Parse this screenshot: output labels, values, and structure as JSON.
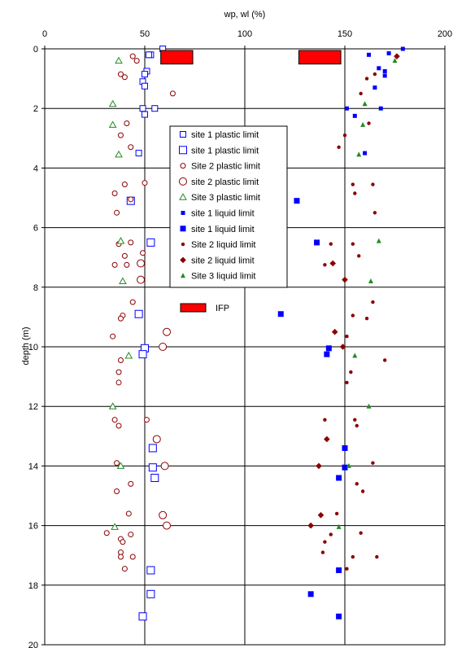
{
  "chart_data": {
    "type": "scatter",
    "title": "",
    "xlabel": "wp, wl (%)",
    "ylabel": "depth (m)",
    "xlim": [
      0,
      200
    ],
    "ylim": [
      0,
      20
    ],
    "y_inverted": true,
    "x_axis_position": "top",
    "x_ticks": [
      "0",
      "50",
      "100",
      "150",
      "200"
    ],
    "y_ticks": [
      "0",
      "2",
      "4",
      "6",
      "8",
      "10",
      "12",
      "14",
      "16",
      "18",
      "20"
    ],
    "grid": "vertical lines at 50, 100, 150; horizontal lines at every 2 m",
    "legend_position": "center",
    "legend": [
      "site 1 plastic limit",
      "site 1 plastic limit",
      "Site 2 plastic limit",
      "site 2 plastic limit",
      "Site 3 plastic limit",
      "site 1 liquid limit",
      "site 1 liquid limit",
      "Site 2 liquid limit",
      "site 2 liquid limit",
      "Site 3 liquid limit",
      "IFP"
    ],
    "colors": {
      "blue": "#0000ff",
      "darkred": "#8b0000",
      "green": "#228b22",
      "red": "#ff0000"
    },
    "series": [
      {
        "name": "site 1 plastic limit",
        "marker": "open-square-small",
        "color": "#0000ff",
        "points": [
          [
            59,
            0
          ],
          [
            53,
            0.2
          ],
          [
            52,
            0.2
          ],
          [
            51,
            0.75
          ],
          [
            50,
            0.85
          ],
          [
            49,
            1.1
          ],
          [
            50,
            1.25
          ],
          [
            55,
            2
          ],
          [
            49,
            2
          ],
          [
            50,
            2.2
          ],
          [
            47,
            3.5
          ]
        ]
      },
      {
        "name": "site 1 plastic limit",
        "marker": "open-square-large",
        "color": "#0000ff",
        "points": [
          [
            43,
            5.1
          ],
          [
            53,
            6.5
          ],
          [
            47,
            8.9
          ],
          [
            50,
            10.05
          ],
          [
            49,
            10.25
          ],
          [
            54,
            13.4
          ],
          [
            54,
            14.05
          ],
          [
            55,
            14.4
          ],
          [
            53,
            17.5
          ],
          [
            53,
            18.3
          ],
          [
            49,
            19.05
          ]
        ]
      },
      {
        "name": "Site 2 plastic limit",
        "marker": "open-circle-small",
        "color": "#8b0000",
        "points": [
          [
            44,
            0.25
          ],
          [
            46,
            0.4
          ],
          [
            38,
            0.85
          ],
          [
            40,
            0.95
          ],
          [
            64,
            1.5
          ],
          [
            41,
            2.5
          ],
          [
            38,
            2.9
          ],
          [
            43,
            3.3
          ],
          [
            50,
            4.5
          ],
          [
            40,
            4.55
          ],
          [
            43,
            5.05
          ],
          [
            35,
            4.85
          ],
          [
            36,
            5.5
          ],
          [
            43,
            6.5
          ],
          [
            37,
            6.55
          ],
          [
            40,
            6.95
          ],
          [
            49,
            6.85
          ],
          [
            35,
            7.25
          ],
          [
            41,
            7.25
          ],
          [
            44,
            8.5
          ],
          [
            39,
            8.95
          ],
          [
            38,
            9.05
          ],
          [
            34,
            9.65
          ],
          [
            38,
            10.45
          ],
          [
            37,
            10.85
          ],
          [
            37,
            11.2
          ],
          [
            35,
            12.45
          ],
          [
            51,
            12.45
          ],
          [
            37,
            12.65
          ],
          [
            36,
            13.9
          ],
          [
            43,
            14.6
          ],
          [
            36,
            14.85
          ],
          [
            42,
            15.6
          ],
          [
            43,
            16.3
          ],
          [
            38,
            16.45
          ],
          [
            39,
            16.55
          ],
          [
            31,
            16.25
          ],
          [
            38,
            16.9
          ],
          [
            38,
            17.05
          ],
          [
            44,
            17.05
          ],
          [
            40,
            17.45
          ]
        ]
      },
      {
        "name": "site 2 plastic limit",
        "marker": "open-circle-large",
        "color": "#8b0000",
        "points": [
          [
            48,
            7.2
          ],
          [
            48,
            7.75
          ],
          [
            61,
            9.5
          ],
          [
            59,
            10.0
          ],
          [
            56,
            13.1
          ],
          [
            60,
            14.0
          ],
          [
            59,
            15.65
          ],
          [
            61,
            16.0
          ]
        ]
      },
      {
        "name": "Site 3 plastic limit",
        "marker": "open-triangle",
        "color": "#228b22",
        "points": [
          [
            37,
            0.4
          ],
          [
            34,
            1.85
          ],
          [
            34,
            2.55
          ],
          [
            37,
            3.55
          ],
          [
            38,
            6.45
          ],
          [
            39,
            7.8
          ],
          [
            42,
            10.3
          ],
          [
            34,
            12.0
          ],
          [
            38,
            14.0
          ],
          [
            35,
            16.05
          ]
        ]
      },
      {
        "name": "site 1 liquid limit",
        "marker": "filled-square-small",
        "color": "#0000ff",
        "points": [
          [
            179,
            0
          ],
          [
            172,
            0.15
          ],
          [
            162,
            0.2
          ],
          [
            170,
            0.75
          ],
          [
            170,
            0.9
          ],
          [
            165,
            1.3
          ],
          [
            167,
            0.65
          ],
          [
            151,
            2.0
          ],
          [
            155,
            2.25
          ],
          [
            168,
            2.0
          ],
          [
            160,
            3.5
          ]
        ]
      },
      {
        "name": "site 1 liquid limit",
        "marker": "filled-square-large",
        "color": "#0000ff",
        "points": [
          [
            126,
            5.1
          ],
          [
            136,
            6.5
          ],
          [
            118,
            8.9
          ],
          [
            142,
            10.05
          ],
          [
            141,
            10.25
          ],
          [
            150,
            13.4
          ],
          [
            150,
            14.05
          ],
          [
            147,
            14.4
          ],
          [
            147,
            17.5
          ],
          [
            133,
            18.3
          ],
          [
            147,
            19.05
          ]
        ]
      },
      {
        "name": "Site 2 liquid limit",
        "marker": "filled-circle-small",
        "color": "#8b0000",
        "points": [
          [
            147,
            0.45
          ],
          [
            165,
            0.85
          ],
          [
            161,
            1.0
          ],
          [
            158,
            1.5
          ],
          [
            162,
            2.5
          ],
          [
            150,
            2.9
          ],
          [
            147,
            3.3
          ],
          [
            154,
            4.55
          ],
          [
            164,
            4.55
          ],
          [
            155,
            4.85
          ],
          [
            165,
            5.5
          ],
          [
            143,
            6.55
          ],
          [
            154,
            6.55
          ],
          [
            157,
            6.95
          ],
          [
            140,
            7.25
          ],
          [
            164,
            8.5
          ],
          [
            154,
            8.95
          ],
          [
            161,
            9.05
          ],
          [
            151,
            9.65
          ],
          [
            170,
            10.45
          ],
          [
            153,
            10.85
          ],
          [
            151,
            11.2
          ],
          [
            140,
            12.45
          ],
          [
            155,
            12.45
          ],
          [
            156,
            12.65
          ],
          [
            164,
            13.9
          ],
          [
            156,
            14.6
          ],
          [
            159,
            14.85
          ],
          [
            146,
            15.6
          ],
          [
            143,
            16.3
          ],
          [
            140,
            16.55
          ],
          [
            158,
            16.25
          ],
          [
            139,
            16.9
          ],
          [
            154,
            17.05
          ],
          [
            166,
            17.05
          ],
          [
            151,
            17.45
          ]
        ]
      },
      {
        "name": "site 2 liquid limit",
        "marker": "filled-diamond",
        "color": "#8b0000",
        "points": [
          [
            176,
            0.25
          ],
          [
            144,
            7.2
          ],
          [
            150,
            7.75
          ],
          [
            145,
            9.5
          ],
          [
            149,
            10.0
          ],
          [
            141,
            13.1
          ],
          [
            137,
            14.0
          ],
          [
            138,
            15.65
          ],
          [
            133,
            16.0
          ]
        ]
      },
      {
        "name": "Site 3 liquid limit",
        "marker": "filled-triangle",
        "color": "#228b22",
        "points": [
          [
            175,
            0.4
          ],
          [
            160,
            1.85
          ],
          [
            159,
            2.55
          ],
          [
            157,
            3.55
          ],
          [
            167,
            6.45
          ],
          [
            163,
            7.8
          ],
          [
            155,
            10.3
          ],
          [
            162,
            12.0
          ],
          [
            152,
            14.0
          ],
          [
            147,
            16.05
          ]
        ]
      },
      {
        "name": "IFP",
        "marker": "rect",
        "color": "#ff0000",
        "bars": [
          [
            58,
            74,
            0.0,
            0.4
          ],
          [
            127,
            148,
            0.0,
            0.4
          ]
        ]
      }
    ]
  }
}
